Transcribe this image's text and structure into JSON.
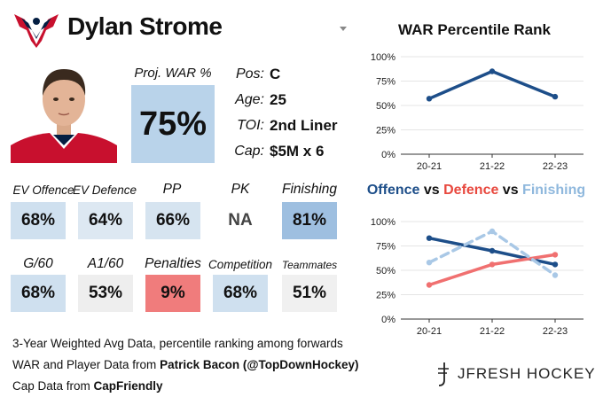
{
  "header": {
    "player_name": "Dylan Strome",
    "logo_icon": "capitals-eagle-logo"
  },
  "war": {
    "label": "Proj. WAR %",
    "value": "75%",
    "color": "#b9d3ea"
  },
  "info": [
    {
      "label": "Pos:",
      "value": "C"
    },
    {
      "label": "Age:",
      "value": "25"
    },
    {
      "label": "TOI:",
      "value": "2nd Liner"
    },
    {
      "label": "Cap:",
      "value": "$5M x 6"
    }
  ],
  "stats_row1": [
    {
      "label": "EV Offence",
      "value": "68%",
      "color": "#cfe0ef"
    },
    {
      "label": "EV Defence",
      "value": "64%",
      "color": "#dde8f2"
    },
    {
      "label": "PP",
      "value": "66%",
      "color": "#d6e4f0"
    },
    {
      "label": "PK",
      "value": "NA",
      "color": "transparent"
    },
    {
      "label": "Finishing",
      "value": "81%",
      "color": "#9ebfe0"
    }
  ],
  "stats_row2": [
    {
      "label": "G/60",
      "value": "68%",
      "color": "#cfe0ef"
    },
    {
      "label": "A1/60",
      "value": "53%",
      "color": "#eeeeee"
    },
    {
      "label": "Penalties",
      "value": "9%",
      "color": "#f07c7c"
    },
    {
      "label": "Competition",
      "value": "68%",
      "color": "#cfe0ef"
    },
    {
      "label": "Teammates",
      "value": "51%",
      "color": "#f0f0f0"
    }
  ],
  "footer": {
    "line1": "3-Year Weighted Avg Data, percentile ranking among forwards",
    "line2_prefix": "WAR and Player Data from ",
    "line2_bold": "Patrick Bacon (@TopDownHockey)",
    "line3_prefix": "Cap Data from ",
    "line3_bold": "CapFriendly",
    "brand": "JFRESH HOCKEY"
  },
  "chart_data": [
    {
      "type": "line",
      "title": "WAR Percentile Rank",
      "categories": [
        "20-21",
        "21-22",
        "22-23"
      ],
      "ylim": [
        0,
        100
      ],
      "yticks": [
        "0%",
        "25%",
        "50%",
        "75%",
        "100%"
      ],
      "grid": true,
      "series": [
        {
          "values": [
            57,
            85,
            59
          ],
          "color": "#1d4e89",
          "dashed": false
        }
      ]
    },
    {
      "type": "line",
      "title_parts": [
        {
          "text": "Offence",
          "color": "#1d4e89"
        },
        {
          "text": " vs ",
          "color": "#111111"
        },
        {
          "text": "Defence",
          "color": "#e8483e"
        },
        {
          "text": " vs ",
          "color": "#111111"
        },
        {
          "text": "Finishing",
          "color": "#8fb8dd"
        }
      ],
      "categories": [
        "20-21",
        "21-22",
        "22-23"
      ],
      "ylim": [
        0,
        100
      ],
      "yticks": [
        "0%",
        "25%",
        "50%",
        "75%",
        "100%"
      ],
      "grid": true,
      "series": [
        {
          "values": [
            83,
            70,
            56
          ],
          "color": "#1d4e89",
          "dashed": false
        },
        {
          "values": [
            35,
            56,
            66
          ],
          "color": "#f07070",
          "dashed": false
        },
        {
          "values": [
            58,
            90,
            45
          ],
          "color": "#a9c8e6",
          "dashed": true
        }
      ]
    }
  ]
}
